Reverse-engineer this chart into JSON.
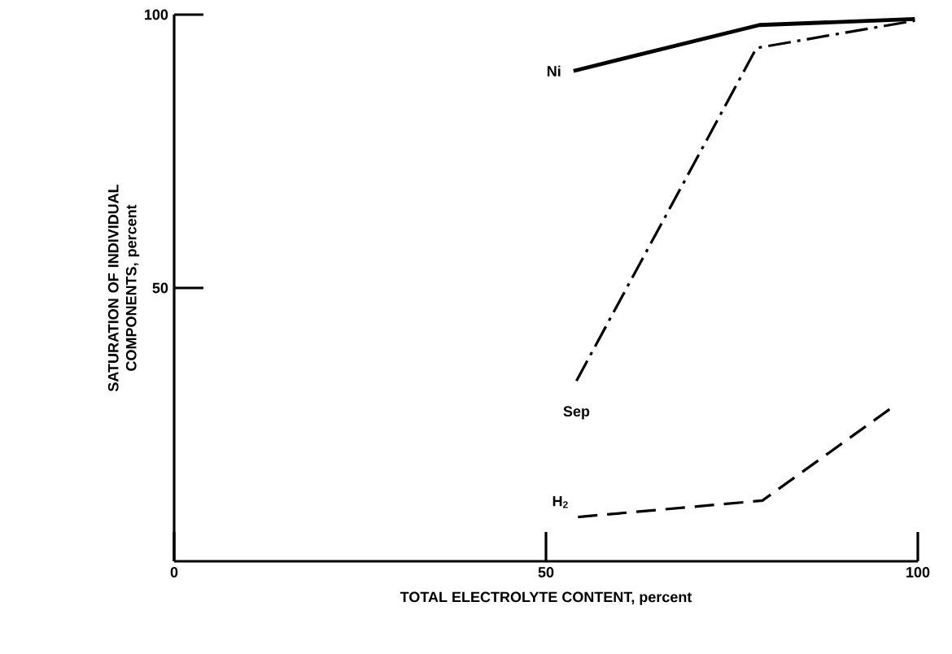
{
  "chart_data": {
    "type": "line",
    "xlabel": "TOTAL ELECTROLYTE CONTENT, percent",
    "ylabel": "SATURATION OF INDIVIDUAL COMPONENTS, percent",
    "xlim": [
      0,
      100
    ],
    "ylim": [
      0,
      100
    ],
    "xticks": [
      0,
      50,
      100
    ],
    "yticks": [
      50,
      100
    ],
    "marker": "none",
    "series": [
      {
        "name": "Ni",
        "color": "#000000",
        "line_style": "solid",
        "x": [
          53.7,
          78.7,
          99.6
        ],
        "values": [
          89.7,
          98.1,
          99.2
        ]
      },
      {
        "name": "Sep",
        "color": "#000000",
        "line_style": "dashdot",
        "x": [
          54.1,
          78.3,
          99.6
        ],
        "values": [
          33,
          93.9,
          98.9
        ]
      },
      {
        "name": "H$_{2}$",
        "color": "#000000",
        "line_style": "dashed",
        "x": [
          54.3,
          79.1,
          96.7
        ],
        "values": [
          8.1,
          11.1,
          28.3
        ]
      }
    ]
  }
}
